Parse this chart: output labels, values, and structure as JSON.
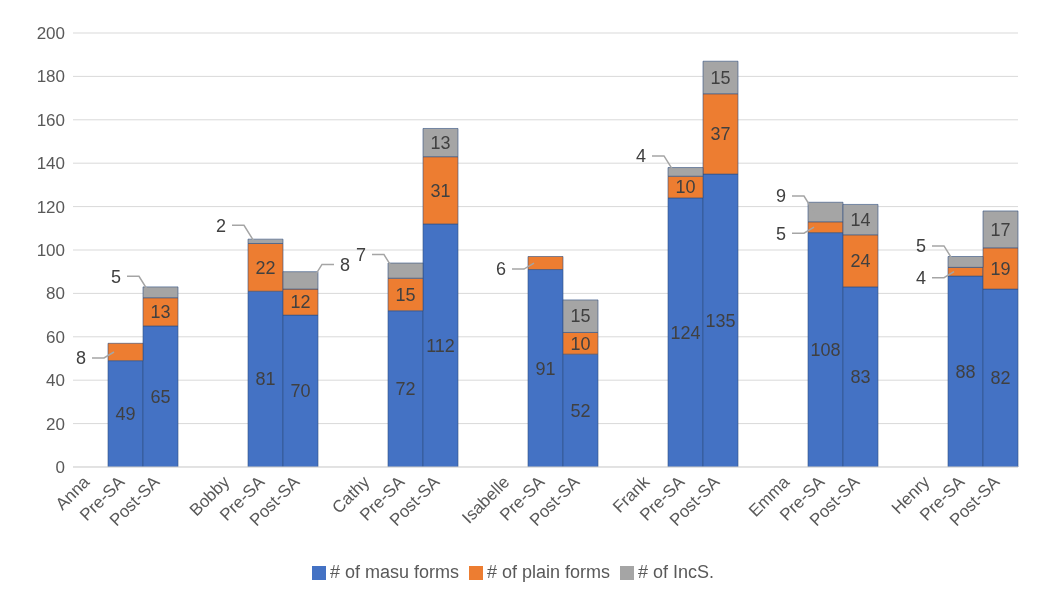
{
  "chart_data": {
    "type": "bar",
    "stacked": true,
    "categories": [
      "Anna",
      "Pre-SA",
      "Post-SA",
      null,
      "Bobby",
      "Pre-SA",
      "Post-SA",
      null,
      "Cathy",
      "Pre-SA",
      "Post-SA",
      null,
      "Isabelle",
      "Pre-SA",
      "Post-SA",
      null,
      "Frank",
      "Pre-SA",
      "Post-SA",
      null,
      "Emma",
      "Pre-SA",
      "Post-SA",
      null,
      "Henry",
      "Pre-SA",
      "Post-SA"
    ],
    "series": [
      {
        "name": "# of masu forms",
        "color": "#4472c4",
        "values": [
          null,
          49,
          65,
          null,
          null,
          81,
          70,
          null,
          null,
          72,
          112,
          null,
          null,
          91,
          52,
          null,
          null,
          124,
          135,
          null,
          null,
          108,
          83,
          null,
          null,
          88,
          82
        ]
      },
      {
        "name": "# of plain forms",
        "color": "#ed7d31",
        "values": [
          null,
          8,
          13,
          null,
          null,
          22,
          12,
          null,
          null,
          15,
          31,
          null,
          null,
          6,
          10,
          null,
          null,
          10,
          37,
          null,
          null,
          5,
          24,
          null,
          null,
          4,
          19
        ]
      },
      {
        "name": "# of IncS.",
        "color": "#a5a5a5",
        "values": [
          null,
          null,
          5,
          null,
          null,
          2,
          8,
          null,
          null,
          7,
          13,
          null,
          null,
          null,
          15,
          null,
          null,
          4,
          15,
          null,
          null,
          9,
          14,
          null,
          null,
          5,
          17
        ]
      }
    ],
    "ylim": [
      0,
      200
    ],
    "yticks": [
      0,
      20,
      40,
      60,
      80,
      100,
      120,
      140,
      160,
      180,
      200
    ],
    "grid": "y",
    "legend": "bottom",
    "data_labels": true
  }
}
